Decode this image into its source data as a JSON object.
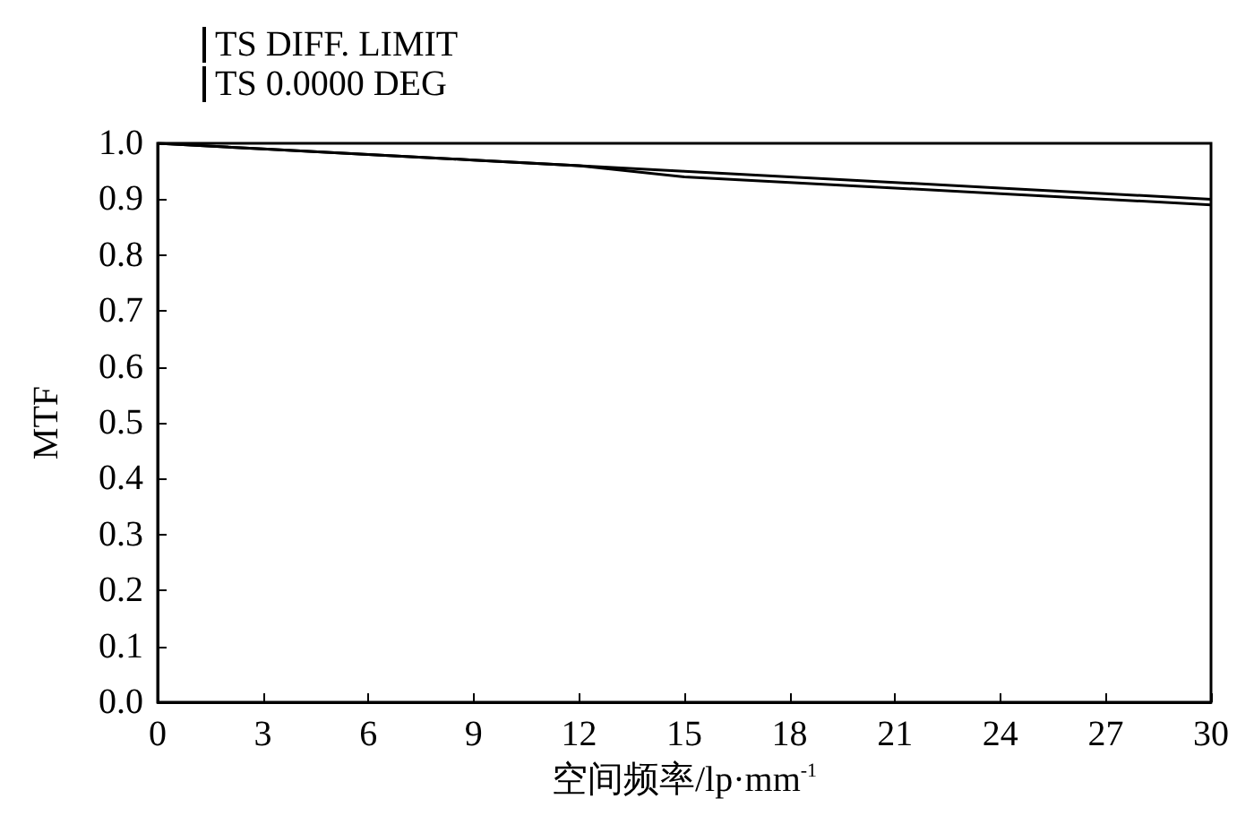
{
  "chart_data": {
    "type": "line",
    "xlabel": "空间频率/lp·mm$^{-1}$",
    "ylabel": "MTF",
    "x": [
      0,
      3,
      6,
      9,
      12,
      15,
      18,
      21,
      24,
      27,
      30
    ],
    "series": [
      {
        "name": "TS DIFF. LIMIT",
        "color": "#000000",
        "values": [
          1.0,
          0.99,
          0.98,
          0.97,
          0.96,
          0.95,
          0.94,
          0.93,
          0.92,
          0.91,
          0.9
        ]
      },
      {
        "name": "TS 0.0000 DEG",
        "color": "#000000",
        "values": [
          1.0,
          0.99,
          0.98,
          0.97,
          0.96,
          0.94,
          0.93,
          0.92,
          0.91,
          0.9,
          0.89
        ]
      }
    ],
    "xlim": [
      0,
      30
    ],
    "xticks": [
      0,
      3,
      6,
      9,
      12,
      15,
      18,
      21,
      24,
      27,
      30
    ],
    "ylim": [
      0,
      1
    ],
    "yticks": [
      {
        "value": 0,
        "label": "0.0"
      },
      0.1,
      0.2,
      0.3,
      0.4,
      0.5,
      0.6,
      0.7,
      0.8,
      0.9,
      {
        "value": 1,
        "label": "1.0"
      }
    ],
    "legend": "top left",
    "grid": false,
    "marker": "none",
    "line_style": "solid"
  }
}
